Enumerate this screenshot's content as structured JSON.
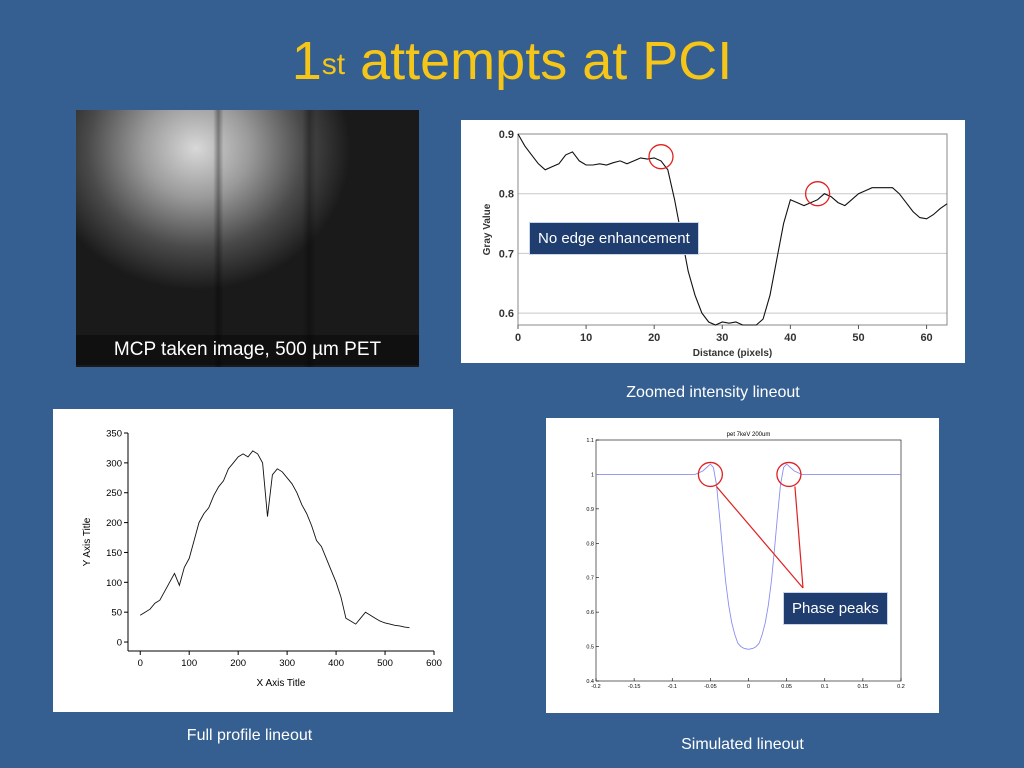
{
  "slide": {
    "title_main": "1",
    "title_sup": "st",
    "title_rest": " attempts at PCI"
  },
  "photo": {
    "caption": "MCP taken image, 500 µm PET"
  },
  "captions": {
    "zoomed": "Zoomed intensity lineout",
    "full": "Full profile lineout",
    "simulated": "Simulated lineout"
  },
  "callouts": {
    "no_edge": "No edge enhancement",
    "phase_peaks": "Phase peaks"
  },
  "chart_data": [
    {
      "id": "zoomed",
      "type": "line",
      "xlabel": "Distance (pixels)",
      "ylabel": "Gray Value",
      "xlim": [
        0,
        63
      ],
      "ylim": [
        0.58,
        0.9
      ],
      "xticks": [
        0,
        10,
        20,
        30,
        40,
        50,
        60
      ],
      "yticks": [
        0.6,
        0.7,
        0.8,
        0.9
      ],
      "grid": true,
      "x": [
        0,
        1,
        2,
        3,
        4,
        5,
        6,
        7,
        8,
        9,
        10,
        11,
        12,
        13,
        14,
        15,
        16,
        17,
        18,
        19,
        20,
        21,
        22,
        23,
        24,
        25,
        26,
        27,
        28,
        29,
        30,
        31,
        32,
        33,
        34,
        35,
        36,
        37,
        38,
        39,
        40,
        41,
        42,
        43,
        44,
        45,
        46,
        47,
        48,
        49,
        50,
        51,
        52,
        53,
        54,
        55,
        56,
        57,
        58,
        59,
        60,
        61,
        62,
        63
      ],
      "y": [
        0.9,
        0.88,
        0.865,
        0.85,
        0.84,
        0.845,
        0.85,
        0.865,
        0.87,
        0.855,
        0.848,
        0.848,
        0.85,
        0.848,
        0.852,
        0.855,
        0.85,
        0.855,
        0.86,
        0.858,
        0.86,
        0.855,
        0.84,
        0.79,
        0.73,
        0.67,
        0.63,
        0.6,
        0.585,
        0.58,
        0.585,
        0.583,
        0.585,
        0.58,
        0.58,
        0.58,
        0.59,
        0.63,
        0.69,
        0.75,
        0.79,
        0.785,
        0.78,
        0.785,
        0.79,
        0.8,
        0.795,
        0.785,
        0.78,
        0.79,
        0.8,
        0.805,
        0.81,
        0.81,
        0.81,
        0.81,
        0.8,
        0.785,
        0.77,
        0.76,
        0.758,
        0.765,
        0.775,
        0.783
      ],
      "markers": [
        {
          "x": 21,
          "y": 0.862
        },
        {
          "x": 44,
          "y": 0.8
        }
      ]
    },
    {
      "id": "full",
      "type": "line",
      "xlabel": "X Axis Title",
      "ylabel": "Y Axis Title",
      "xlim": [
        -25,
        600
      ],
      "ylim": [
        -15,
        350
      ],
      "xticks": [
        0,
        100,
        200,
        300,
        400,
        500,
        600
      ],
      "yticks": [
        0,
        50,
        100,
        150,
        200,
        250,
        300,
        350
      ],
      "grid": false,
      "x": [
        0,
        10,
        20,
        30,
        40,
        50,
        60,
        70,
        80,
        90,
        100,
        110,
        120,
        130,
        140,
        150,
        160,
        170,
        180,
        190,
        200,
        210,
        220,
        230,
        240,
        250,
        260,
        270,
        280,
        290,
        300,
        310,
        320,
        330,
        340,
        350,
        360,
        370,
        380,
        390,
        400,
        410,
        420,
        430,
        440,
        450,
        460,
        470,
        480,
        490,
        500,
        510,
        520,
        530,
        540,
        550
      ],
      "y": [
        45,
        50,
        55,
        65,
        70,
        85,
        100,
        115,
        95,
        125,
        140,
        170,
        200,
        215,
        225,
        245,
        260,
        270,
        290,
        300,
        310,
        315,
        310,
        320,
        315,
        300,
        210,
        280,
        290,
        285,
        275,
        265,
        250,
        230,
        215,
        195,
        170,
        160,
        140,
        120,
        100,
        75,
        40,
        35,
        30,
        40,
        50,
        45,
        40,
        35,
        32,
        30,
        28,
        27,
        25,
        24
      ]
    },
    {
      "id": "simulated",
      "type": "line",
      "title": "pet 7keV 200um",
      "xlim": [
        -0.2,
        0.2
      ],
      "ylim": [
        0.4,
        1.1
      ],
      "xticks": [
        -0.2,
        -0.15,
        -0.1,
        -0.05,
        0,
        0.05,
        0.1,
        0.15,
        0.2
      ],
      "yticks": [
        0.4,
        0.5,
        0.6,
        0.7,
        0.8,
        0.9,
        1,
        1.1
      ],
      "grid": false,
      "x": [
        -0.2,
        -0.1,
        -0.07,
        -0.06,
        -0.055,
        -0.05,
        -0.046,
        -0.042,
        -0.038,
        -0.034,
        -0.03,
        -0.026,
        -0.022,
        -0.018,
        -0.014,
        -0.01,
        -0.006,
        -0.002,
        0,
        0.002,
        0.006,
        0.01,
        0.014,
        0.018,
        0.022,
        0.026,
        0.03,
        0.034,
        0.038,
        0.042,
        0.046,
        0.05,
        0.055,
        0.06,
        0.07,
        0.1,
        0.2
      ],
      "y": [
        1,
        1,
        1,
        1.01,
        1.02,
        1.03,
        1.02,
        0.97,
        0.88,
        0.78,
        0.69,
        0.62,
        0.57,
        0.535,
        0.51,
        0.5,
        0.495,
        0.493,
        0.492,
        0.493,
        0.495,
        0.5,
        0.51,
        0.535,
        0.57,
        0.62,
        0.69,
        0.78,
        0.88,
        0.97,
        1.02,
        1.03,
        1.02,
        1.01,
        1,
        1,
        1
      ],
      "markers": [
        {
          "x": -0.05,
          "y": 1.0
        },
        {
          "x": 0.053,
          "y": 1.0
        }
      ]
    }
  ]
}
